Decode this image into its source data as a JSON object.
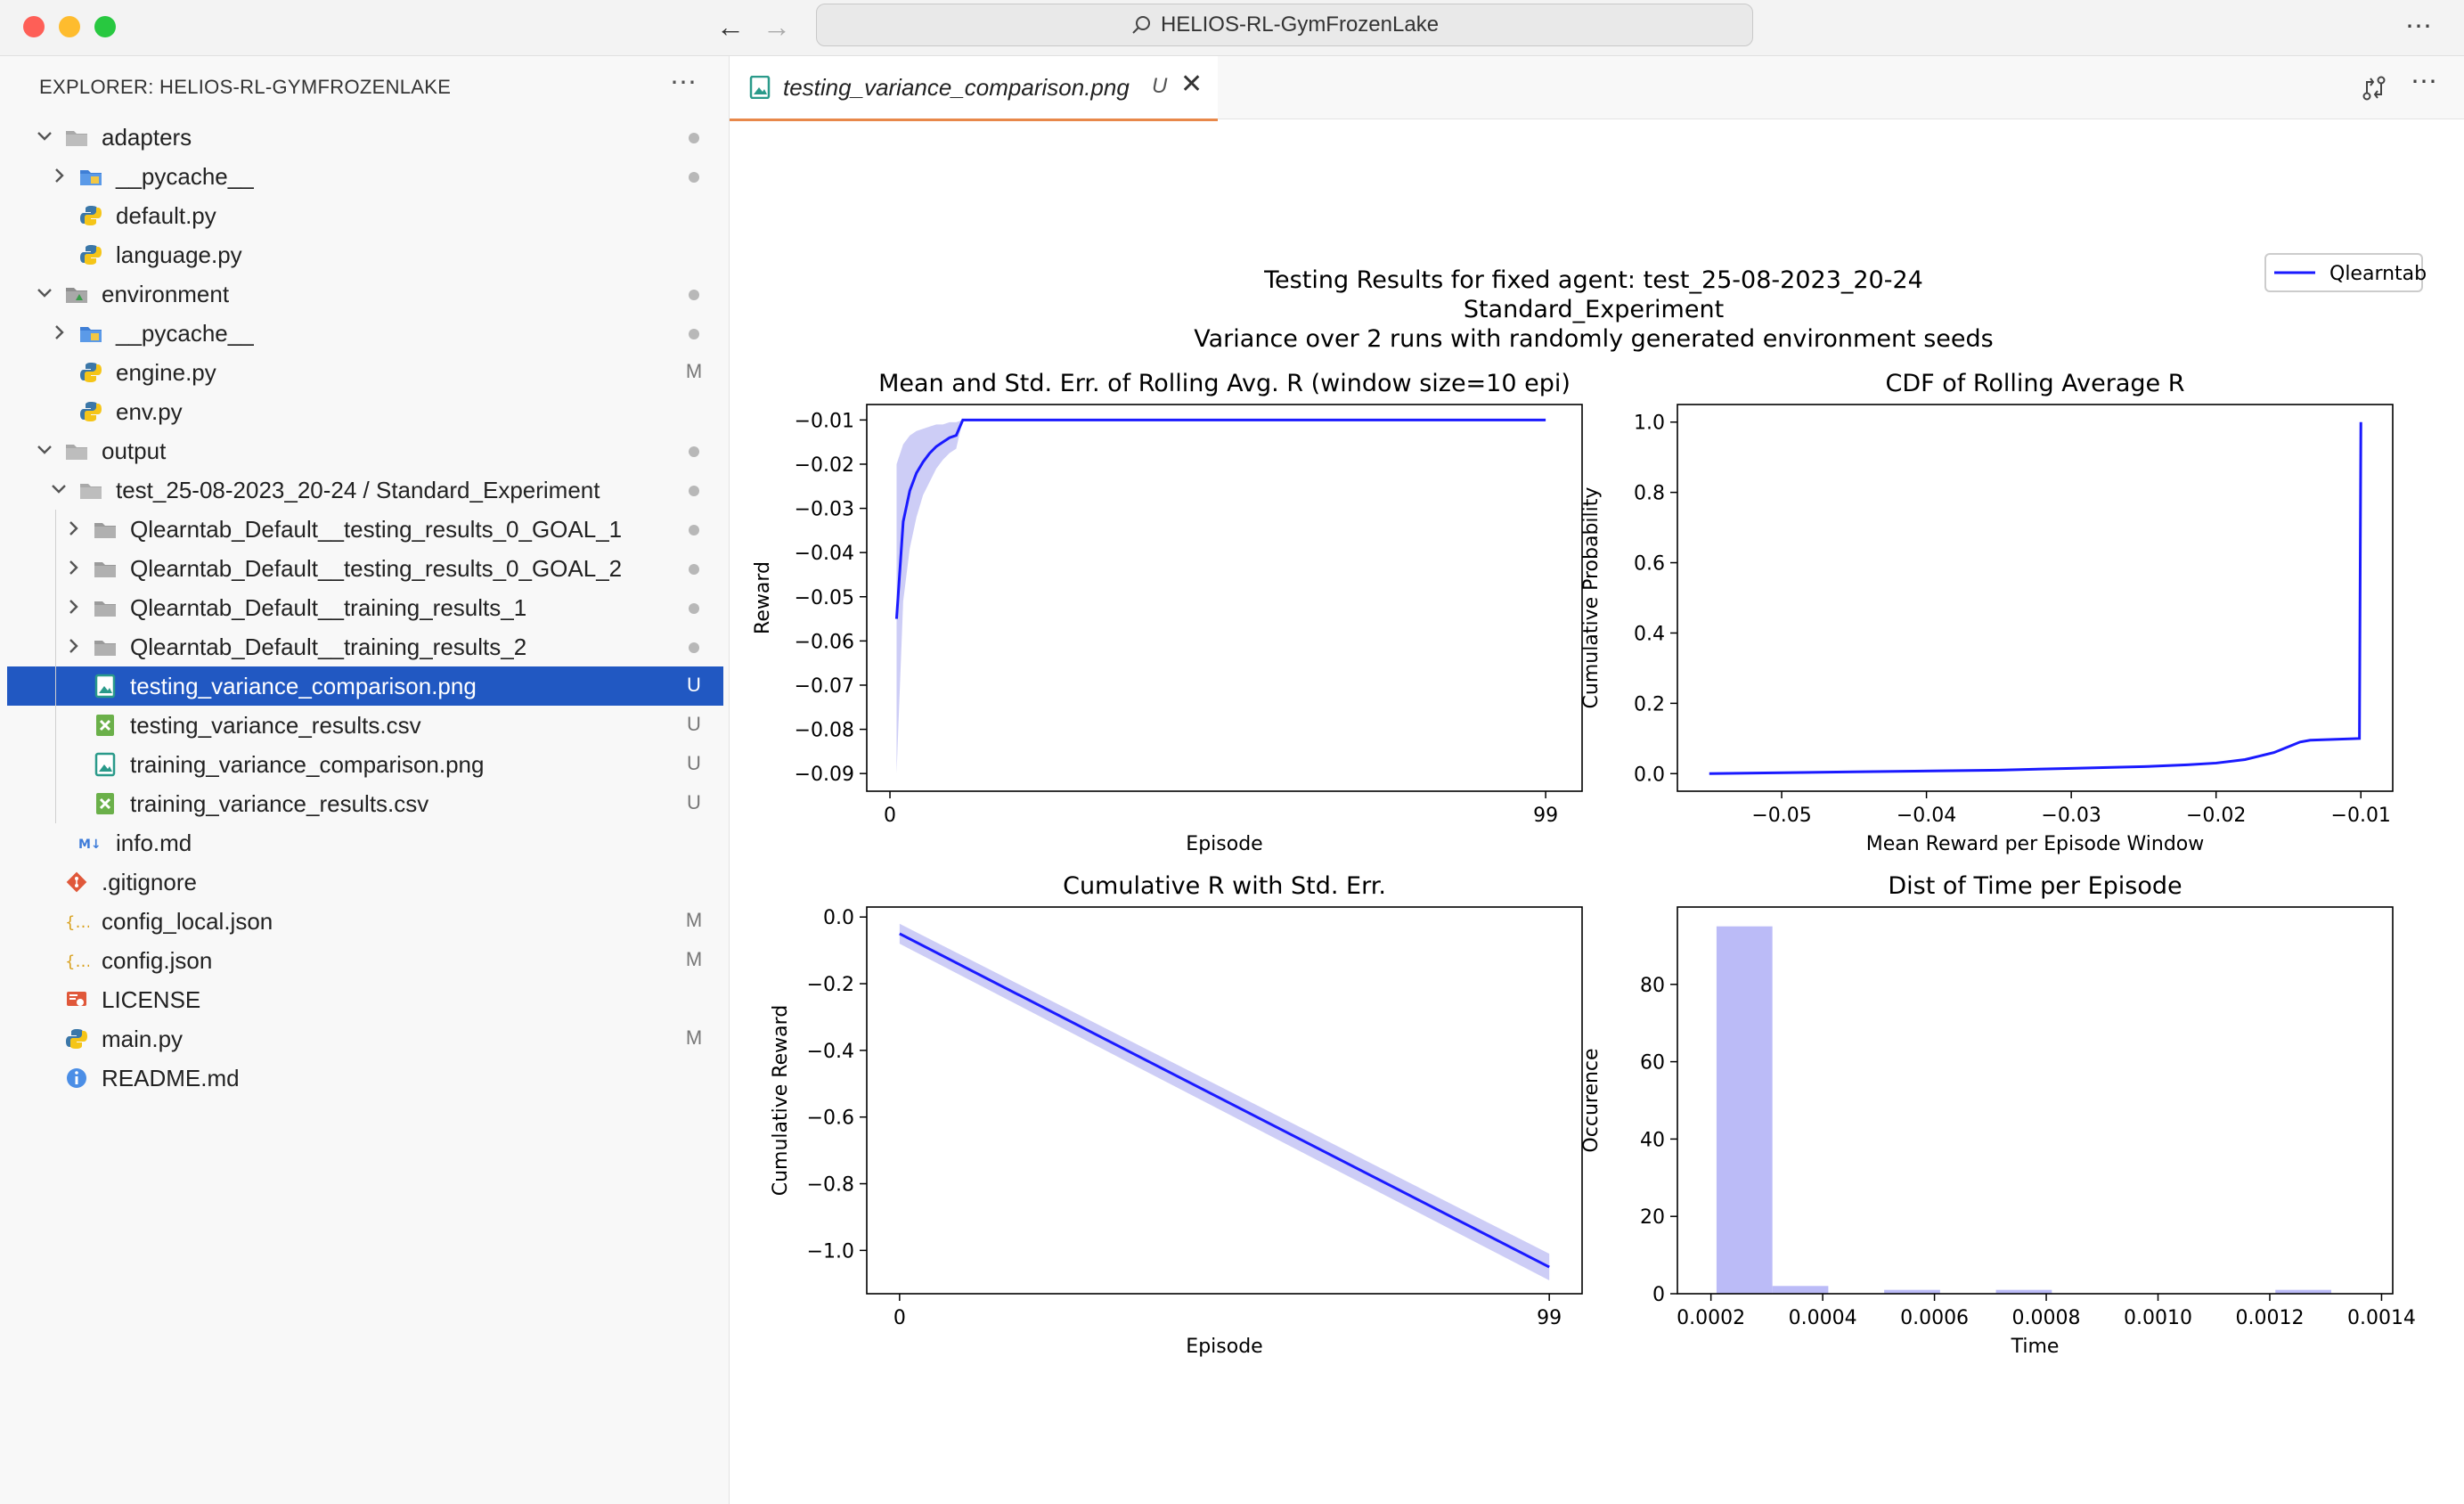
{
  "window": {
    "search_text": "HELIOS-RL-GymFrozenLake",
    "traffic_colors": [
      "#fe5f57",
      "#febc2e",
      "#28c840"
    ]
  },
  "sidebar": {
    "title": "EXPLORER: HELIOS-RL-GYMFROZENLAKE",
    "rows": [
      {
        "label": "adapters",
        "icon": "folder-icon",
        "expanded": true,
        "status": "dot"
      },
      {
        "label": "__pycache__",
        "icon": "folder-blue-icon",
        "expanded": false,
        "status": "dot"
      },
      {
        "label": "default.py",
        "icon": "python-icon",
        "status": ""
      },
      {
        "label": "language.py",
        "icon": "python-icon",
        "status": ""
      },
      {
        "label": "environment",
        "icon": "folder-green-icon",
        "expanded": true,
        "status": "dot"
      },
      {
        "label": "__pycache__",
        "icon": "folder-blue-icon",
        "expanded": false,
        "status": "dot"
      },
      {
        "label": "engine.py",
        "icon": "python-icon",
        "status": "M"
      },
      {
        "label": "env.py",
        "icon": "python-icon",
        "status": ""
      },
      {
        "label": "output",
        "icon": "folder-icon",
        "expanded": true,
        "status": "dot"
      },
      {
        "label": "test_25-08-2023_20-24 / Standard_Experiment",
        "icon": "folder-icon",
        "expanded": true,
        "status": "dot"
      },
      {
        "label": "Qlearntab_Default__testing_results_0_GOAL_1",
        "icon": "folder-gray-icon",
        "expanded": false,
        "status": "dot"
      },
      {
        "label": "Qlearntab_Default__testing_results_0_GOAL_2",
        "icon": "folder-gray-icon",
        "expanded": false,
        "status": "dot"
      },
      {
        "label": "Qlearntab_Default__training_results_1",
        "icon": "folder-gray-icon",
        "expanded": false,
        "status": "dot"
      },
      {
        "label": "Qlearntab_Default__training_results_2",
        "icon": "folder-gray-icon",
        "expanded": false,
        "status": "dot"
      },
      {
        "label": "testing_variance_comparison.png",
        "icon": "image-file-icon",
        "status": "U",
        "selected": true
      },
      {
        "label": "testing_variance_results.csv",
        "icon": "csv-file-icon",
        "status": "U"
      },
      {
        "label": "training_variance_comparison.png",
        "icon": "image-file-icon",
        "status": "U"
      },
      {
        "label": "training_variance_results.csv",
        "icon": "csv-file-icon",
        "status": "U"
      },
      {
        "label": "info.md",
        "icon": "markdown-icon",
        "status": ""
      },
      {
        "label": ".gitignore",
        "icon": "git-icon",
        "status": ""
      },
      {
        "label": "config_local.json",
        "icon": "json-icon",
        "status": "M"
      },
      {
        "label": "config.json",
        "icon": "json-icon",
        "status": "M"
      },
      {
        "label": "LICENSE",
        "icon": "license-icon",
        "status": ""
      },
      {
        "label": "main.py",
        "icon": "python-icon",
        "status": "M"
      },
      {
        "label": "README.md",
        "icon": "info-icon",
        "status": ""
      }
    ]
  },
  "editor": {
    "tab_label": "testing_variance_comparison.png",
    "tab_status": "U"
  },
  "figure": {
    "suptitle_lines": [
      "Testing Results for fixed agent: test_25-08-2023_20-24",
      "Standard_Experiment",
      "Variance over 2 runs with randomly generated environment seeds"
    ],
    "legend_label": "Qlearntab"
  },
  "chart_data": [
    {
      "type": "line",
      "title": "Mean and Std. Err. of Rolling Avg. R (window size=10 epi)",
      "xlabel": "Episode",
      "ylabel": "Reward",
      "xticks": [
        0,
        99
      ],
      "yticks": [
        -0.01,
        -0.02,
        -0.03,
        -0.04,
        -0.05,
        -0.06,
        -0.07,
        -0.08,
        -0.09
      ],
      "xlim": [
        -3.5,
        104.5
      ],
      "ylim": [
        -0.094,
        -0.0065
      ],
      "series": [
        {
          "name": "Qlearntab",
          "x": [
            1,
            2,
            3,
            4,
            5,
            6,
            7,
            8,
            9,
            10,
            11,
            99
          ],
          "y": [
            -0.055,
            -0.033,
            -0.026,
            -0.022,
            -0.0195,
            -0.0175,
            -0.016,
            -0.015,
            -0.014,
            -0.0135,
            -0.01,
            -0.01
          ],
          "err_upper": [
            -0.02,
            -0.0155,
            -0.0135,
            -0.0125,
            -0.012,
            -0.0115,
            -0.011,
            -0.011,
            -0.0105,
            -0.0105,
            -0.01,
            -0.01
          ],
          "err_lower": [
            -0.09,
            -0.051,
            -0.039,
            -0.032,
            -0.027,
            -0.024,
            -0.021,
            -0.019,
            -0.0175,
            -0.0165,
            -0.01,
            -0.01
          ],
          "color": "#1a1aff"
        }
      ]
    },
    {
      "type": "line",
      "title": "CDF of Rolling Average R",
      "xlabel": "Mean Reward per Episode Window",
      "ylabel": "Cumulative Probability",
      "xticks": [
        -0.05,
        -0.04,
        -0.03,
        -0.02,
        -0.01
      ],
      "yticks": [
        0.0,
        0.2,
        0.4,
        0.6,
        0.8,
        1.0
      ],
      "xlim": [
        -0.0572,
        -0.0078
      ],
      "ylim": [
        -0.05,
        1.05
      ],
      "series": [
        {
          "name": "Qlearntab",
          "x": [
            -0.055,
            -0.045,
            -0.035,
            -0.03,
            -0.025,
            -0.022,
            -0.02,
            -0.018,
            -0.017,
            -0.016,
            -0.0148,
            -0.0142,
            -0.0135,
            -0.0101,
            -0.0101,
            -0.01
          ],
          "y": [
            0.0,
            0.005,
            0.01,
            0.015,
            0.02,
            0.025,
            0.03,
            0.04,
            0.05,
            0.06,
            0.08,
            0.09,
            0.095,
            0.1,
            0.1,
            1.0
          ],
          "color": "#1a1aff"
        }
      ]
    },
    {
      "type": "line",
      "title": "Cumulative R with Std. Err.",
      "xlabel": "Episode",
      "ylabel": "Cumulative Reward",
      "xticks": [
        0,
        99
      ],
      "yticks": [
        0.0,
        -0.2,
        -0.4,
        -0.6,
        -0.8,
        -1.0
      ],
      "xlim": [
        -5,
        104
      ],
      "ylim": [
        -1.13,
        0.03
      ],
      "series": [
        {
          "name": "Qlearntab",
          "x": [
            0,
            99
          ],
          "y": [
            -0.05,
            -1.05
          ],
          "err_upper": [
            -0.02,
            -1.01
          ],
          "err_lower": [
            -0.08,
            -1.09
          ],
          "color": "#1a1aff"
        }
      ]
    },
    {
      "type": "bar",
      "title": "Dist of Time per Episode",
      "xlabel": "Time",
      "ylabel": "Occurence",
      "xticks": [
        0.0002,
        0.0004,
        0.0006,
        0.0008,
        0.001,
        0.0012,
        0.0014
      ],
      "xtick_labels": [
        "0.0002",
        "0.0004",
        "0.0006",
        "0.0008",
        "0.0010",
        "0.0012",
        "0.0014"
      ],
      "yticks": [
        0,
        20,
        40,
        60,
        80
      ],
      "xlim": [
        0.00014,
        0.00142
      ],
      "ylim": [
        0,
        100
      ],
      "bin_edges": [
        0.00021,
        0.00031,
        0.00041,
        0.00051,
        0.00061,
        0.00071,
        0.00081,
        0.00091,
        0.00101,
        0.00111,
        0.00121,
        0.00131
      ],
      "counts": [
        95,
        2,
        0,
        1,
        0,
        1,
        0,
        0,
        0,
        0,
        1
      ],
      "color": "#bbbbf7"
    }
  ]
}
